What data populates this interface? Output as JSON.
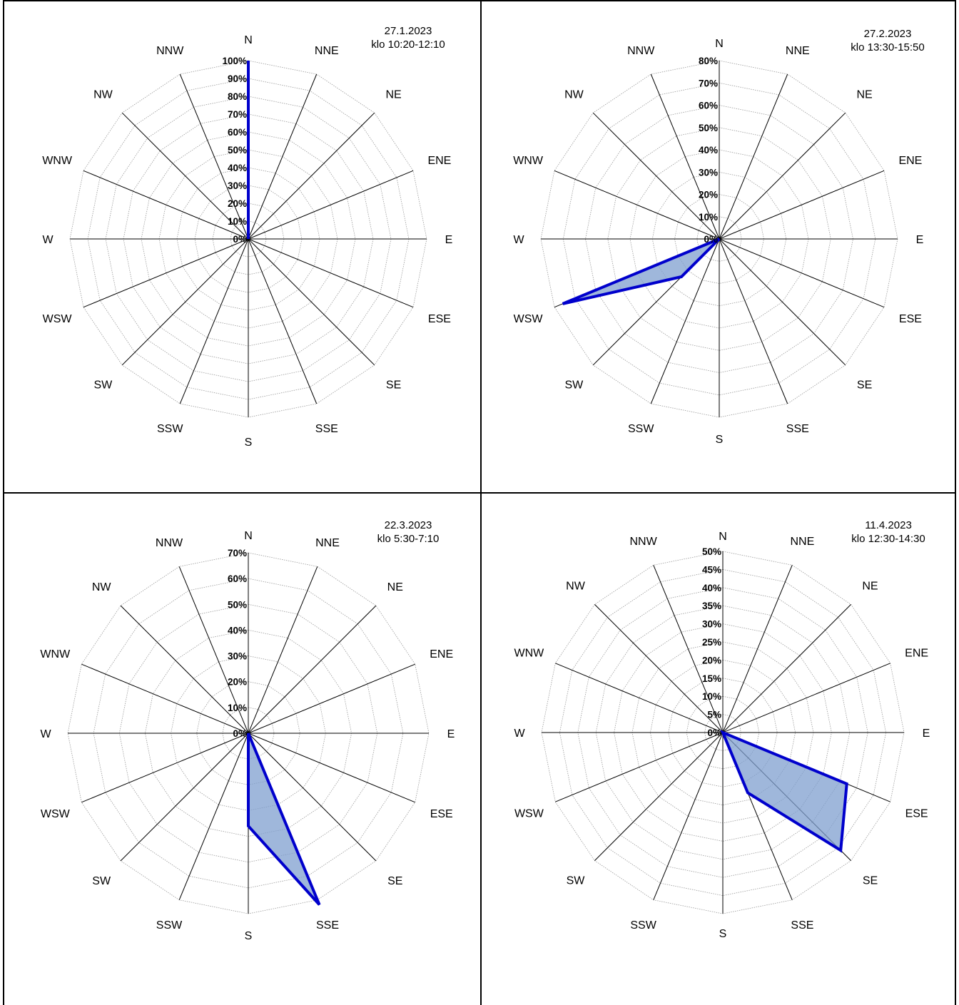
{
  "directions": [
    "N",
    "NNE",
    "NE",
    "ENE",
    "E",
    "ESE",
    "SE",
    "SSE",
    "S",
    "SSW",
    "SW",
    "WSW",
    "W",
    "WNW",
    "NW",
    "NNW"
  ],
  "colors": {
    "series_line": "#0000cc",
    "series_fill": "#7f9fcf",
    "spoke": "#000000",
    "grid": "#999999"
  },
  "chart_data": [
    {
      "type": "radar",
      "date": "27.1.2023",
      "time": "klo 10:20-12:10",
      "rlim": [
        0,
        100
      ],
      "rstep": 10,
      "tick_labels": [
        "0%",
        "10%",
        "20%",
        "30%",
        "40%",
        "50%",
        "60%",
        "70%",
        "80%",
        "90%",
        "100%"
      ],
      "values": [
        100,
        0,
        0,
        0,
        0,
        0,
        0,
        0,
        0,
        0,
        0,
        0,
        0,
        0,
        0,
        0
      ]
    },
    {
      "type": "radar",
      "date": "27.2.2023",
      "time": "klo 13:30-15:50",
      "rlim": [
        0,
        80
      ],
      "rstep": 10,
      "tick_labels": [
        "0%",
        "10%",
        "20%",
        "30%",
        "40%",
        "50%",
        "60%",
        "70%",
        "80%"
      ],
      "values": [
        0,
        0,
        0,
        0,
        0,
        0,
        0,
        0,
        0,
        0,
        24,
        76,
        0,
        0,
        0,
        0
      ]
    },
    {
      "type": "radar",
      "date": "22.3.2023",
      "time": "klo 5:30-7:10",
      "rlim": [
        0,
        70
      ],
      "rstep": 10,
      "tick_labels": [
        "0%",
        "10%",
        "20%",
        "30%",
        "40%",
        "50%",
        "60%",
        "70%"
      ],
      "values": [
        0,
        0,
        0,
        0,
        0,
        0,
        0,
        72,
        36,
        0,
        0,
        0,
        0,
        0,
        0,
        0
      ]
    },
    {
      "type": "radar",
      "date": "11.4.2023",
      "time": "klo 12:30-14:30",
      "rlim": [
        0,
        50
      ],
      "rstep": 5,
      "tick_labels": [
        "0%",
        "5%",
        "10%",
        "15%",
        "20%",
        "25%",
        "30%",
        "35%",
        "40%",
        "45%",
        "50%"
      ],
      "values": [
        0,
        0,
        0,
        0,
        0,
        37,
        46,
        18,
        0,
        0,
        0,
        0,
        0,
        0,
        0,
        0
      ]
    }
  ]
}
